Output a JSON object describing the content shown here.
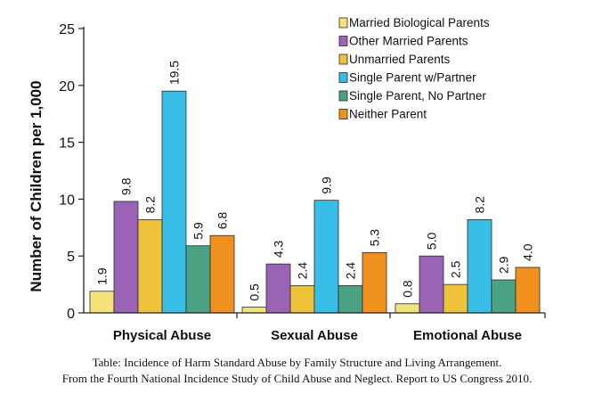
{
  "chart_data": {
    "type": "bar",
    "ylabel": "Number of Children per 1,000",
    "xlabel": "",
    "ylim": [
      0,
      25
    ],
    "yticks": [
      0,
      5,
      10,
      15,
      20,
      25
    ],
    "categories": [
      "Physical Abuse",
      "Sexual Abuse",
      "Emotional Abuse"
    ],
    "legend_position": "top-right",
    "grid": false,
    "series": [
      {
        "name": "Married Biological Parents",
        "color": "#f4e27a",
        "values": [
          1.9,
          0.5,
          0.8
        ],
        "labels": [
          "1.9",
          "0.5",
          "0.8"
        ]
      },
      {
        "name": "Other Married Parents",
        "color": "#9b63b6",
        "values": [
          9.8,
          4.3,
          5.0
        ],
        "labels": [
          "9.8",
          "4.3",
          "5.0"
        ]
      },
      {
        "name": "Unmarried Parents",
        "color": "#efc23c",
        "values": [
          8.2,
          2.4,
          2.5
        ],
        "labels": [
          "8.2",
          "2.4",
          "2.5"
        ]
      },
      {
        "name": "Single Parent w/Partner",
        "color": "#37bde6",
        "values": [
          19.5,
          9.9,
          8.2
        ],
        "labels": [
          "19.5",
          "9.9",
          "8.2"
        ]
      },
      {
        "name": "Single Parent, No Partner",
        "color": "#4aa283",
        "values": [
          5.9,
          2.4,
          2.9
        ],
        "labels": [
          "5.9",
          "2.4",
          "2.9"
        ]
      },
      {
        "name": "Neither Parent",
        "color": "#f0901f",
        "values": [
          6.8,
          5.3,
          4.0
        ],
        "labels": [
          "6.8",
          "5.3",
          "4.0"
        ]
      }
    ]
  },
  "caption": {
    "line1": "Table: Incidence of Harm Standard Abuse by Family Structure and Living Arrangement.",
    "line2": "From the Fourth National Incidence Study of Child Abuse and Neglect. Report to US Congress 2010."
  }
}
